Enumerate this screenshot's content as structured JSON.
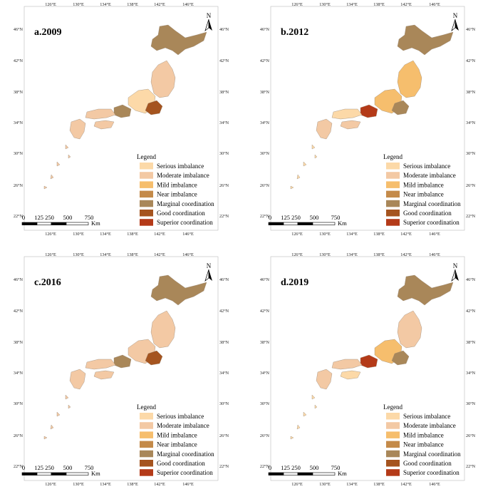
{
  "legend": {
    "title": "Legend",
    "items": [
      {
        "label": "Serious imbalance",
        "color": "#FCD9A8"
      },
      {
        "label": "Moderate imbalance",
        "color": "#F3C9A4"
      },
      {
        "label": "Mild imbalance",
        "color": "#F6BE6D"
      },
      {
        "label": "Near imbalance",
        "color": "#C48A49"
      },
      {
        "label": "Marginal coordination",
        "color": "#A98759"
      },
      {
        "label": "Good coordination",
        "color": "#A5541F"
      },
      {
        "label": "Superior coordination",
        "color": "#B43A18"
      }
    ]
  },
  "scale_bar": {
    "labels": [
      "0",
      "125 250",
      "500",
      "750"
    ],
    "unit": "Km"
  },
  "north_arrow": {
    "label": "N"
  },
  "axes": {
    "lon_ticks": [
      "126°E",
      "130°E",
      "134°E",
      "138°E",
      "142°E",
      "146°E"
    ],
    "lat_ticks": [
      "46°N",
      "42°N",
      "38°N",
      "34°N",
      "30°N",
      "26°N",
      "22°N"
    ]
  },
  "panels": [
    {
      "title": "a.2009",
      "region_levels": {
        "hokkaido": 5,
        "tohoku": 2,
        "kanto": 6,
        "chubu": 1,
        "kansai": 5,
        "chugoku": 2,
        "shikoku": 2,
        "kyushu": 2,
        "islands": 2
      }
    },
    {
      "title": "b.2012",
      "region_levels": {
        "hokkaido": 5,
        "tohoku": 3,
        "kanto": 5,
        "chubu": 3,
        "kansai": 7,
        "chugoku": 1,
        "shikoku": 2,
        "kyushu": 2,
        "islands": 1
      }
    },
    {
      "title": "c.2016",
      "region_levels": {
        "hokkaido": 5,
        "tohoku": 2,
        "kanto": 6,
        "chubu": 2,
        "kansai": 5,
        "chugoku": 2,
        "shikoku": 2,
        "kyushu": 2,
        "islands": 2
      }
    },
    {
      "title": "d.2019",
      "region_levels": {
        "hokkaido": 5,
        "tohoku": 2,
        "kanto": 5,
        "chubu": 3,
        "kansai": 7,
        "chugoku": 2,
        "shikoku": 1,
        "kyushu": 2,
        "islands": 1
      }
    }
  ]
}
